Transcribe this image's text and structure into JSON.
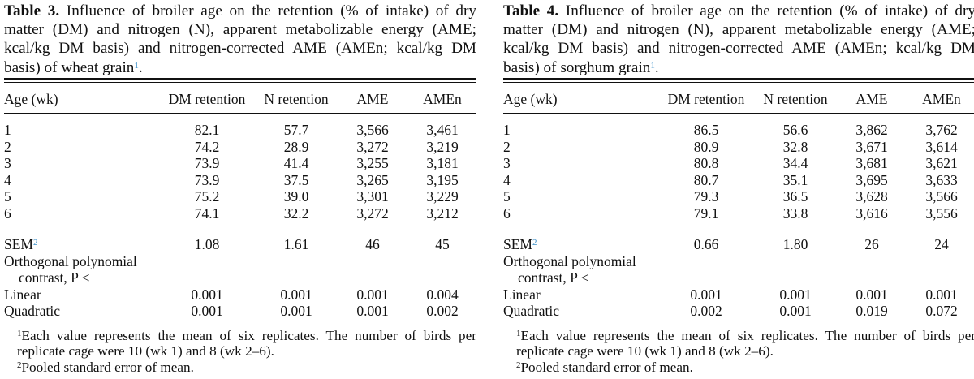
{
  "tables": [
    {
      "label": "Table 3.",
      "caption": " Influence of broiler age on the retention (% of intake) of dry matter (DM) and nitrogen (N), apparent metabolizable energy (AME; kcal/kg DM basis) and nitrogen-corrected AME (AMEn; kcal/kg DM basis) of wheat grain",
      "caption_sup": "1",
      "caption_end": ".",
      "headers": [
        "Age (wk)",
        "DM retention",
        "N retention",
        "AME",
        "AMEn"
      ],
      "rows": [
        [
          "1",
          "82.1",
          "57.7",
          "3,566",
          "3,461"
        ],
        [
          "2",
          "74.2",
          "28.9",
          "3,272",
          "3,219"
        ],
        [
          "3",
          "73.9",
          "41.4",
          "3,255",
          "3,181"
        ],
        [
          "4",
          "73.9",
          "37.5",
          "3,265",
          "3,195"
        ],
        [
          "5",
          "75.2",
          "39.0",
          "3,301",
          "3,229"
        ],
        [
          "6",
          "74.1",
          "32.2",
          "3,272",
          "3,212"
        ]
      ],
      "sem": {
        "label": "SEM",
        "sup": "2",
        "values": [
          "1.08",
          "1.61",
          "46",
          "45"
        ]
      },
      "contrast_label_1": "Orthogonal polynomial",
      "contrast_label_2": "contrast, P ≤",
      "linear": {
        "label": "Linear",
        "values": [
          "0.001",
          "0.001",
          "0.001",
          "0.004"
        ]
      },
      "quadratic": {
        "label": "Quadratic",
        "values": [
          "0.001",
          "0.001",
          "0.001",
          "0.002"
        ]
      },
      "foot1_sup": "1",
      "foot1": "Each value represents the mean of six replicates. The number of birds per replicate cage were 10 (wk 1) and 8 (wk 2–6).",
      "foot2_sup": "2",
      "foot2": "Pooled standard error of mean."
    },
    {
      "label": "Table 4.",
      "caption": " Influence of broiler age on the retention (% of intake) of dry matter (DM) and nitrogen (N), apparent metabolizable energy (AME; kcal/kg DM basis) and nitrogen-corrected AME (AMEn; kcal/kg DM basis) of sorghum grain",
      "caption_sup": "1",
      "caption_end": ".",
      "headers": [
        "Age (wk)",
        "DM retention",
        "N retention",
        "AME",
        "AMEn"
      ],
      "rows": [
        [
          "1",
          "86.5",
          "56.6",
          "3,862",
          "3,762"
        ],
        [
          "2",
          "80.9",
          "32.8",
          "3,671",
          "3,614"
        ],
        [
          "3",
          "80.8",
          "34.4",
          "3,681",
          "3,621"
        ],
        [
          "4",
          "80.7",
          "35.1",
          "3,695",
          "3,633"
        ],
        [
          "5",
          "79.3",
          "36.5",
          "3,628",
          "3,566"
        ],
        [
          "6",
          "79.1",
          "33.8",
          "3,616",
          "3,556"
        ]
      ],
      "sem": {
        "label": "SEM",
        "sup": "2",
        "values": [
          "0.66",
          "1.80",
          "26",
          "24"
        ]
      },
      "contrast_label_1": "Orthogonal polynomial",
      "contrast_label_2": "contrast, P ≤",
      "linear": {
        "label": "Linear",
        "values": [
          "0.001",
          "0.001",
          "0.001",
          "0.001"
        ]
      },
      "quadratic": {
        "label": "Quadratic",
        "values": [
          "0.002",
          "0.001",
          "0.019",
          "0.072"
        ]
      },
      "foot1_sup": "1",
      "foot1": "Each value represents the mean of six replicates. The number of birds per replicate cage were 10 (wk 1) and 8 (wk 2–6).",
      "foot2_sup": "2",
      "foot2": "Pooled standard error of mean."
    }
  ]
}
